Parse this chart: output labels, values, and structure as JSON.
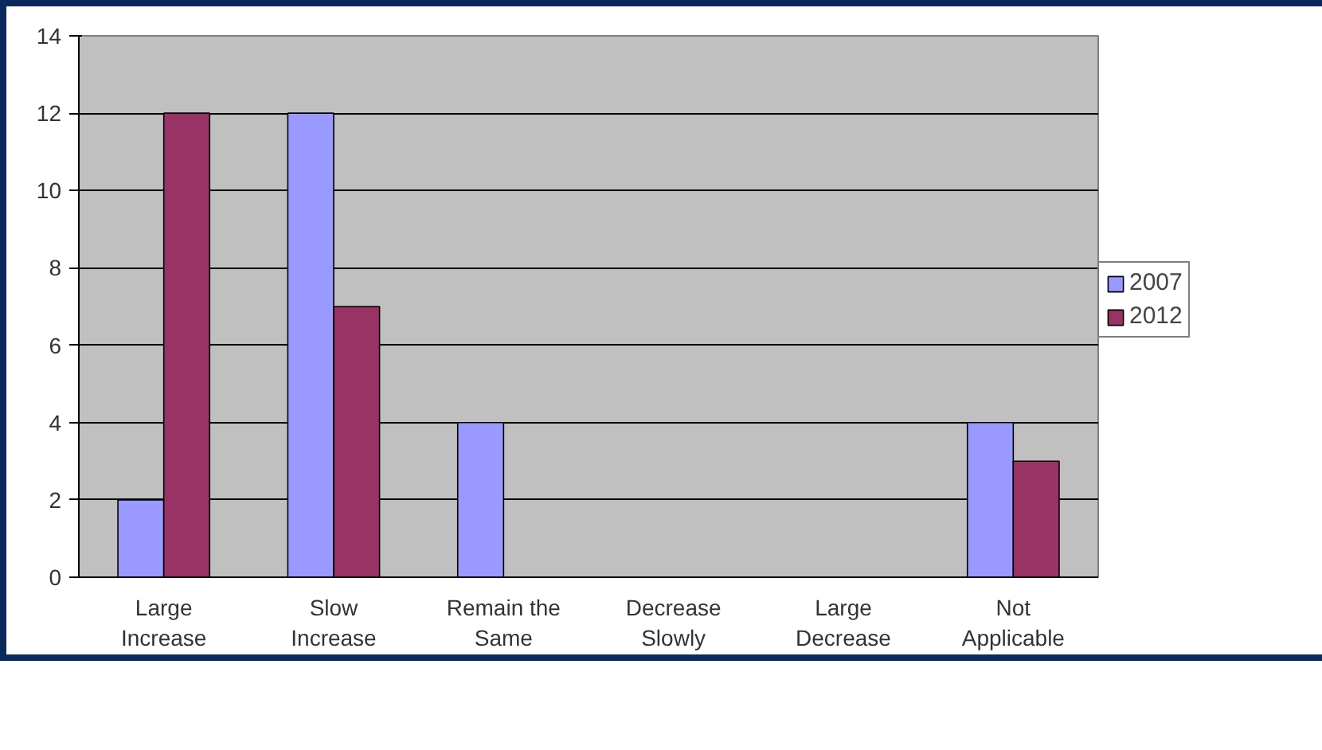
{
  "chart_data": {
    "type": "bar",
    "categories": [
      "Large Increase",
      "Slow Increase",
      "Remain the Same",
      "Decrease Slowly",
      "Large Decrease",
      "Not Applicable"
    ],
    "series": [
      {
        "name": "2007",
        "color": "#9999ff",
        "values": [
          2,
          12,
          4,
          0,
          0,
          4
        ]
      },
      {
        "name": "2012",
        "color": "#993366",
        "values": [
          12,
          7,
          0,
          0,
          0,
          3
        ]
      }
    ],
    "ylim": [
      0,
      14
    ],
    "yticks": [
      0,
      2,
      4,
      6,
      8,
      10,
      12,
      14
    ],
    "grid": "y",
    "legend": "right"
  }
}
